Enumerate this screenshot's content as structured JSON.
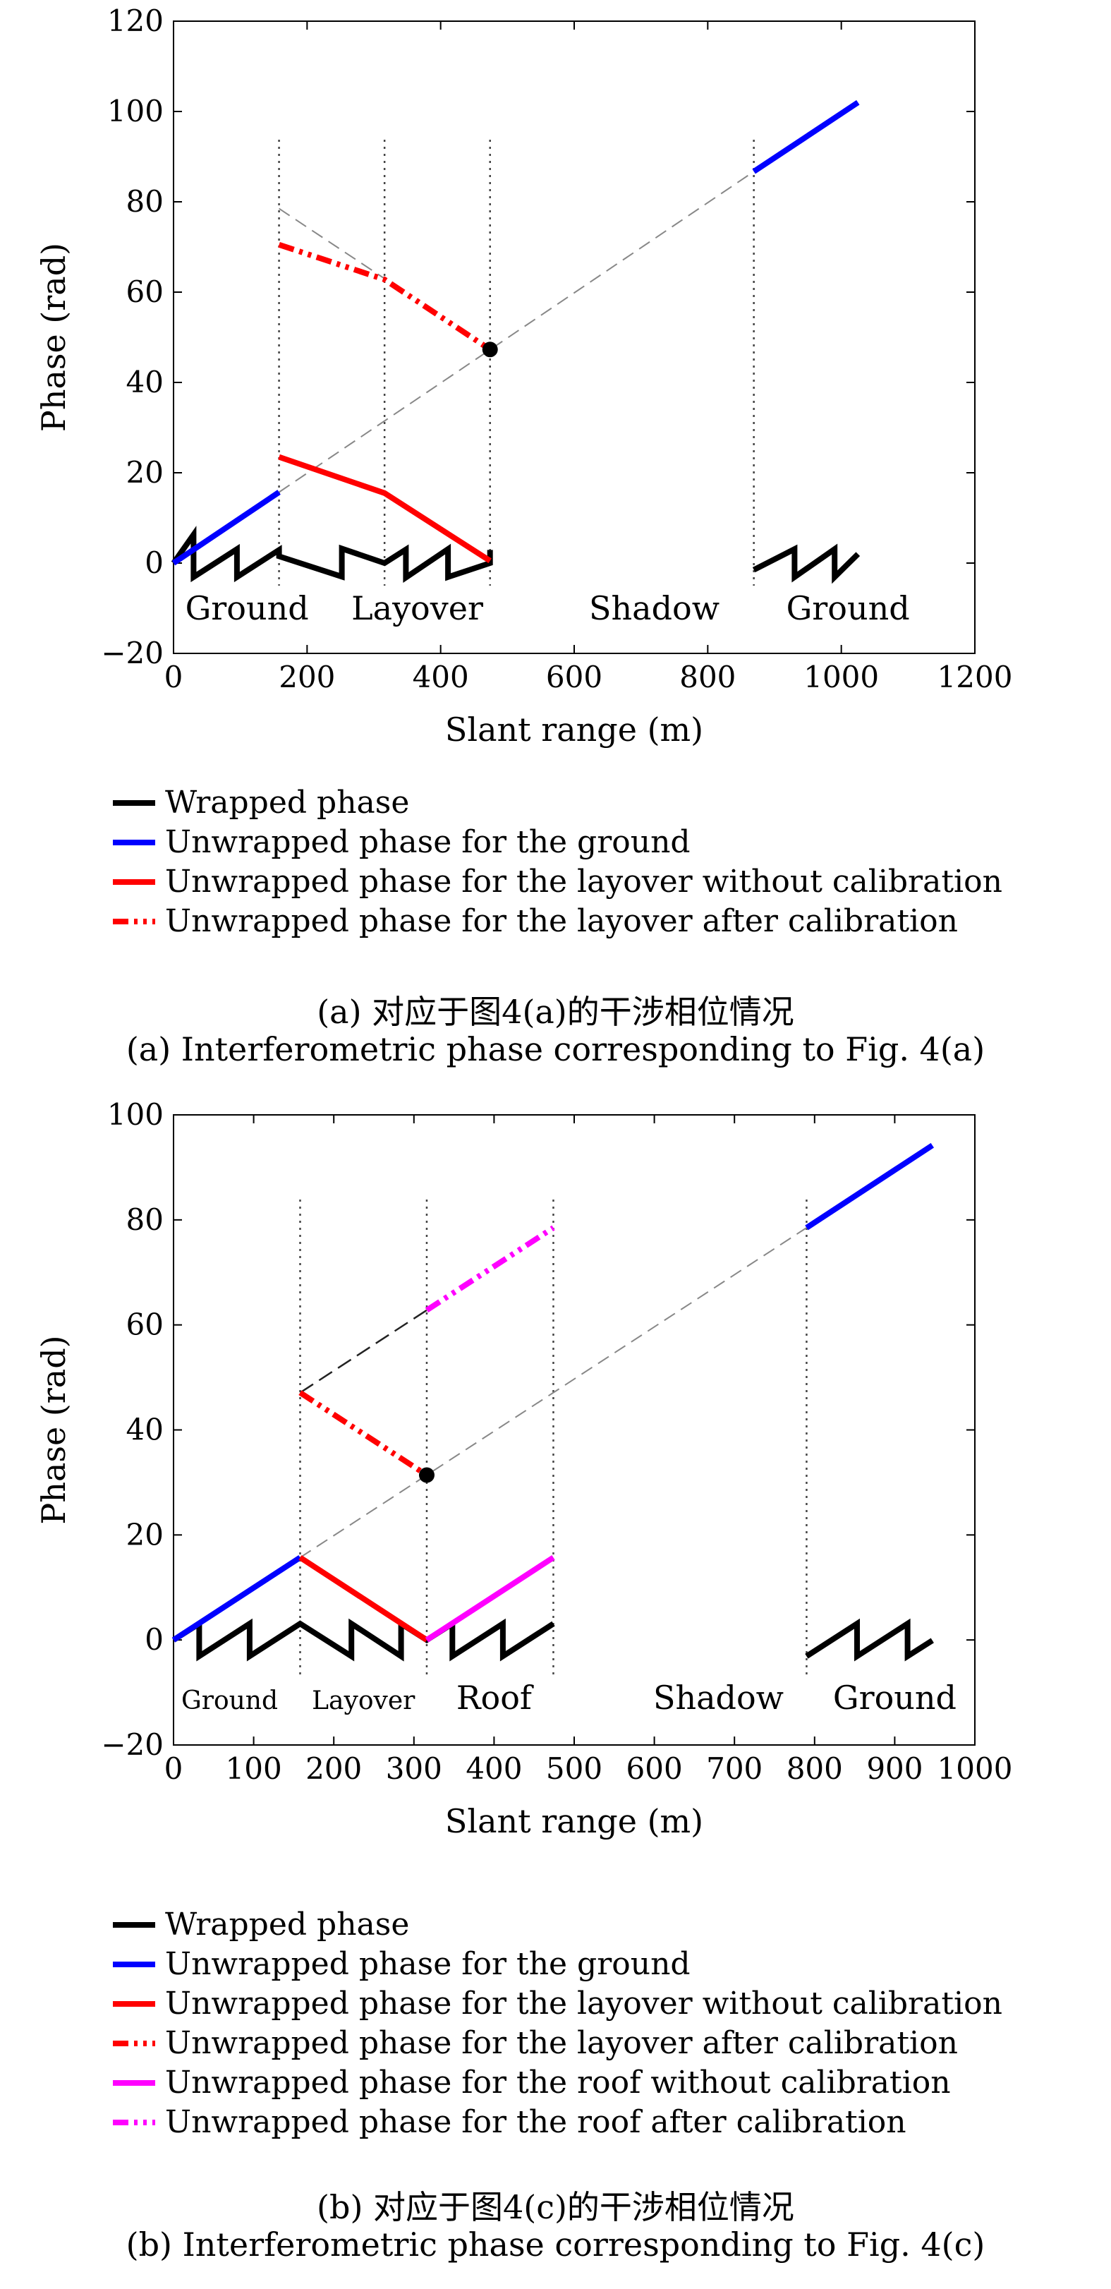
{
  "colors": {
    "wrapped": "#000000",
    "ground": "#0000ff",
    "layover": "#ff0000",
    "roof": "#ff00ff",
    "reference": "#888888"
  },
  "chart_data": [
    {
      "id": "a",
      "type": "line",
      "xlabel": "Slant range (m)",
      "ylabel": "Phase (rad)",
      "xlim": [
        0,
        1200
      ],
      "ylim": [
        -20,
        120
      ],
      "xticks": [
        0,
        200,
        400,
        600,
        800,
        1000,
        1200
      ],
      "yticks": [
        -20,
        0,
        20,
        40,
        60,
        80,
        100,
        120
      ],
      "grid": false,
      "region_boundaries": [
        158,
        316,
        474,
        869
      ],
      "region_labels": [
        {
          "text": "Ground",
          "x": 110,
          "y": -10
        },
        {
          "text": "Layover",
          "x": 365,
          "y": -10
        },
        {
          "text": "Shadow",
          "x": 720,
          "y": -10
        },
        {
          "text": "Ground",
          "x": 1010,
          "y": -10
        }
      ],
      "series": [
        {
          "name": "Wrapped phase",
          "style": "wrapped",
          "x": [
            0,
            30,
            30,
            95,
            95,
            158,
            158,
            252,
            252,
            316,
            316,
            348,
            348,
            411,
            411,
            474,
            474
          ],
          "y": [
            0,
            6.3,
            -3.1,
            3.1,
            -3.1,
            2.9,
            1.5,
            -3.0,
            3.2,
            0,
            0,
            3.0,
            -3.2,
            3.1,
            -3.1,
            0,
            2.9
          ]
        },
        {
          "name": "",
          "style": "wrapped",
          "x": [
            869,
            930,
            930,
            990,
            990,
            1025
          ],
          "y": [
            -1.5,
            3.1,
            -3.1,
            3.1,
            -3.1,
            2.0
          ]
        },
        {
          "name": "Unwrapped phase for the ground",
          "style": "ground",
          "x": [
            0,
            158
          ],
          "y": [
            0,
            15.7
          ]
        },
        {
          "name": "",
          "style": "ground",
          "x": [
            869,
            1025
          ],
          "y": [
            86.7,
            102.0
          ]
        },
        {
          "name": "Unwrapped phase for the layover without calibration",
          "style": "layover",
          "x": [
            158,
            316,
            474
          ],
          "y": [
            23.5,
            15.5,
            0.5
          ]
        },
        {
          "name": "Unwrapped phase for the layover after calibration",
          "style": "layover-calibrated",
          "x": [
            158,
            316,
            474
          ],
          "y": [
            70.5,
            62.8,
            47.3
          ]
        },
        {
          "name": "",
          "style": "reference",
          "x": [
            158,
            869
          ],
          "y": [
            15.7,
            86.7
          ]
        },
        {
          "name": "",
          "style": "reference",
          "x": [
            158,
            316
          ],
          "y": [
            78.5,
            63.0
          ]
        }
      ],
      "points": [
        {
          "x": 474,
          "y": 47.3
        }
      ],
      "legend": [
        {
          "label": "Wrapped phase",
          "style": "wrapped"
        },
        {
          "label": "Unwrapped phase for the ground",
          "style": "ground"
        },
        {
          "label": "Unwrapped phase for the layover without calibration",
          "style": "layover"
        },
        {
          "label": "Unwrapped phase for the layover after calibration",
          "style": "layover-calibrated"
        }
      ],
      "caption_cn": "(a) 对应于图4(a)的干涉相位情况",
      "caption_en": "(a) Interferometric phase corresponding to Fig. 4(a)"
    },
    {
      "id": "b",
      "type": "line",
      "xlabel": "Slant range (m)",
      "ylabel": "Phase (rad)",
      "xlim": [
        0,
        1000
      ],
      "ylim": [
        -20,
        100
      ],
      "xticks": [
        0,
        100,
        200,
        300,
        400,
        500,
        600,
        700,
        800,
        900,
        1000
      ],
      "yticks": [
        -20,
        0,
        20,
        40,
        60,
        80,
        100
      ],
      "grid": false,
      "region_boundaries": [
        158,
        316,
        474,
        790
      ],
      "region_labels": [
        {
          "text": "Ground",
          "x": 70,
          "y": -11,
          "small": true
        },
        {
          "text": "Layover",
          "x": 237,
          "y": -11,
          "small": true
        },
        {
          "text": "Roof",
          "x": 400,
          "y": -11,
          "small": false
        },
        {
          "text": "Shadow",
          "x": 680,
          "y": -11,
          "small": false
        },
        {
          "text": "Ground",
          "x": 900,
          "y": -11,
          "small": false
        }
      ],
      "series": [
        {
          "name": "Wrapped phase",
          "style": "wrapped",
          "x": [
            0,
            32,
            32,
            95,
            95,
            158,
            222,
            222,
            284,
            284,
            316,
            348,
            348,
            411,
            411,
            474
          ],
          "y": [
            0,
            3.1,
            -3.1,
            3.1,
            -3.1,
            3.1,
            -3.1,
            3.1,
            -3.1,
            3.1,
            0,
            3.1,
            -3.1,
            3.1,
            -3.1,
            3.1
          ]
        },
        {
          "name": "",
          "style": "wrapped",
          "x": [
            790,
            853,
            853,
            916,
            916,
            947
          ],
          "y": [
            -3.1,
            3.1,
            -3.1,
            3.1,
            -3.1,
            -0.1
          ]
        },
        {
          "name": "Unwrapped phase for the ground",
          "style": "ground",
          "x": [
            0,
            158
          ],
          "y": [
            0,
            15.7
          ]
        },
        {
          "name": "",
          "style": "ground",
          "x": [
            790,
            947
          ],
          "y": [
            78.5,
            94.2
          ]
        },
        {
          "name": "Unwrapped phase for the layover without calibration",
          "style": "layover",
          "x": [
            158,
            316
          ],
          "y": [
            15.7,
            0
          ]
        },
        {
          "name": "Unwrapped phase for the layover after calibration",
          "style": "layover-calibrated",
          "x": [
            158,
            316
          ],
          "y": [
            47.1,
            31.4
          ]
        },
        {
          "name": "Unwrapped phase for the roof without calibration",
          "style": "roof",
          "x": [
            316,
            474
          ],
          "y": [
            0,
            15.7
          ]
        },
        {
          "name": "Unwrapped phase for the roof after calibration",
          "style": "roof-calibrated",
          "x": [
            316,
            474
          ],
          "y": [
            62.8,
            78.5
          ]
        },
        {
          "name": "",
          "style": "reference",
          "x": [
            158,
            790
          ],
          "y": [
            15.7,
            78.5
          ]
        },
        {
          "name": "",
          "style": "reference-dark",
          "x": [
            158,
            316
          ],
          "y": [
            47.1,
            62.8
          ]
        }
      ],
      "points": [
        {
          "x": 316,
          "y": 31.4
        }
      ],
      "legend": [
        {
          "label": "Wrapped phase",
          "style": "wrapped"
        },
        {
          "label": "Unwrapped phase for the ground",
          "style": "ground"
        },
        {
          "label": "Unwrapped phase for the layover without calibration",
          "style": "layover"
        },
        {
          "label": "Unwrapped phase for the layover after calibration",
          "style": "layover-calibrated"
        },
        {
          "label": "Unwrapped phase for the roof without calibration",
          "style": "roof"
        },
        {
          "label": "Unwrapped phase for the roof after calibration",
          "style": "roof-calibrated"
        }
      ],
      "caption_cn": "(b) 对应于图4(c)的干涉相位情况",
      "caption_en": "(b) Interferometric phase corresponding to Fig. 4(c)"
    }
  ]
}
